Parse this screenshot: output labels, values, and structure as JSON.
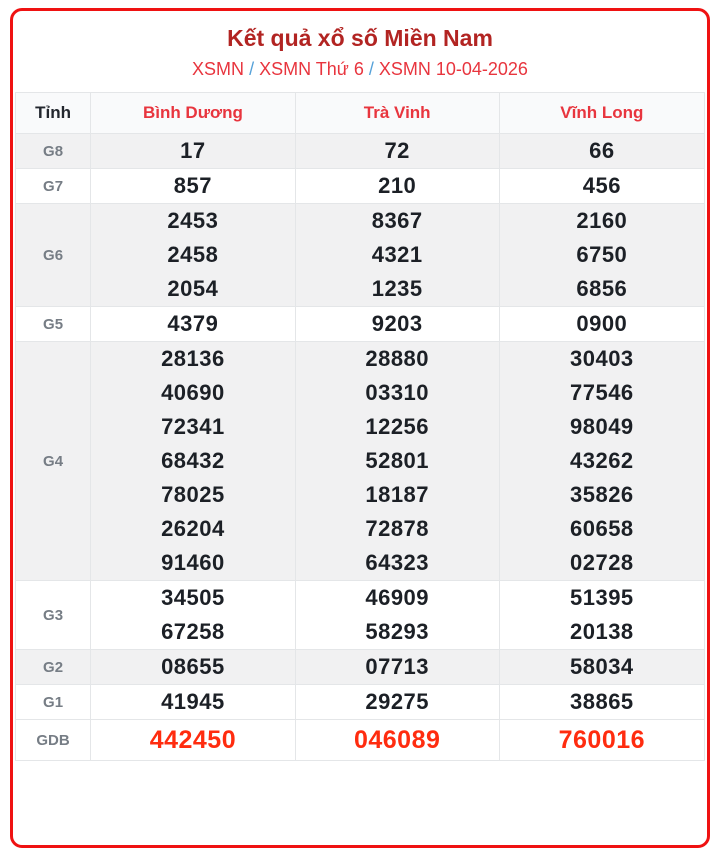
{
  "header": {
    "title": "Kết quả xổ số Miền Nam",
    "separator": "/",
    "breadcrumb": [
      {
        "label": "XSMN"
      },
      {
        "label": "XSMN Thứ 6"
      },
      {
        "label": "XSMN 10-04-2026"
      }
    ]
  },
  "table": {
    "columns": [
      "Tỉnh",
      "Bình Dương",
      "Trà Vinh",
      "Vĩnh Long"
    ],
    "rows": [
      {
        "label": "G8",
        "cells": [
          [
            "17"
          ],
          [
            "72"
          ],
          [
            "66"
          ]
        ]
      },
      {
        "label": "G7",
        "cells": [
          [
            "857"
          ],
          [
            "210"
          ],
          [
            "456"
          ]
        ]
      },
      {
        "label": "G6",
        "cells": [
          [
            "2453",
            "2458",
            "2054"
          ],
          [
            "8367",
            "4321",
            "1235"
          ],
          [
            "2160",
            "6750",
            "6856"
          ]
        ]
      },
      {
        "label": "G5",
        "cells": [
          [
            "4379"
          ],
          [
            "9203"
          ],
          [
            "0900"
          ]
        ]
      },
      {
        "label": "G4",
        "cells": [
          [
            "28136",
            "40690",
            "72341",
            "68432",
            "78025",
            "26204",
            "91460"
          ],
          [
            "28880",
            "03310",
            "12256",
            "52801",
            "18187",
            "72878",
            "64323"
          ],
          [
            "30403",
            "77546",
            "98049",
            "43262",
            "35826",
            "60658",
            "02728"
          ]
        ]
      },
      {
        "label": "G3",
        "cells": [
          [
            "34505",
            "67258"
          ],
          [
            "46909",
            "58293"
          ],
          [
            "51395",
            "20138"
          ]
        ]
      },
      {
        "label": "G2",
        "cells": [
          [
            "08655"
          ],
          [
            "07713"
          ],
          [
            "58034"
          ]
        ]
      },
      {
        "label": "G1",
        "cells": [
          [
            "41945"
          ],
          [
            "29275"
          ],
          [
            "38865"
          ]
        ]
      },
      {
        "label": "GDB",
        "cells": [
          [
            "442450"
          ],
          [
            "046089"
          ],
          [
            "760016"
          ]
        ],
        "jackpot": true
      }
    ]
  },
  "colors": {
    "card_border": "#ef1212",
    "title": "#b22422",
    "link_red": "#e8353e",
    "separator_blue": "#55a1d9",
    "number": "#1c2026",
    "jackpot_red": "#ff2c0f",
    "row_stripe": "#f1f1f2",
    "header_bg": "#f9fafb"
  }
}
